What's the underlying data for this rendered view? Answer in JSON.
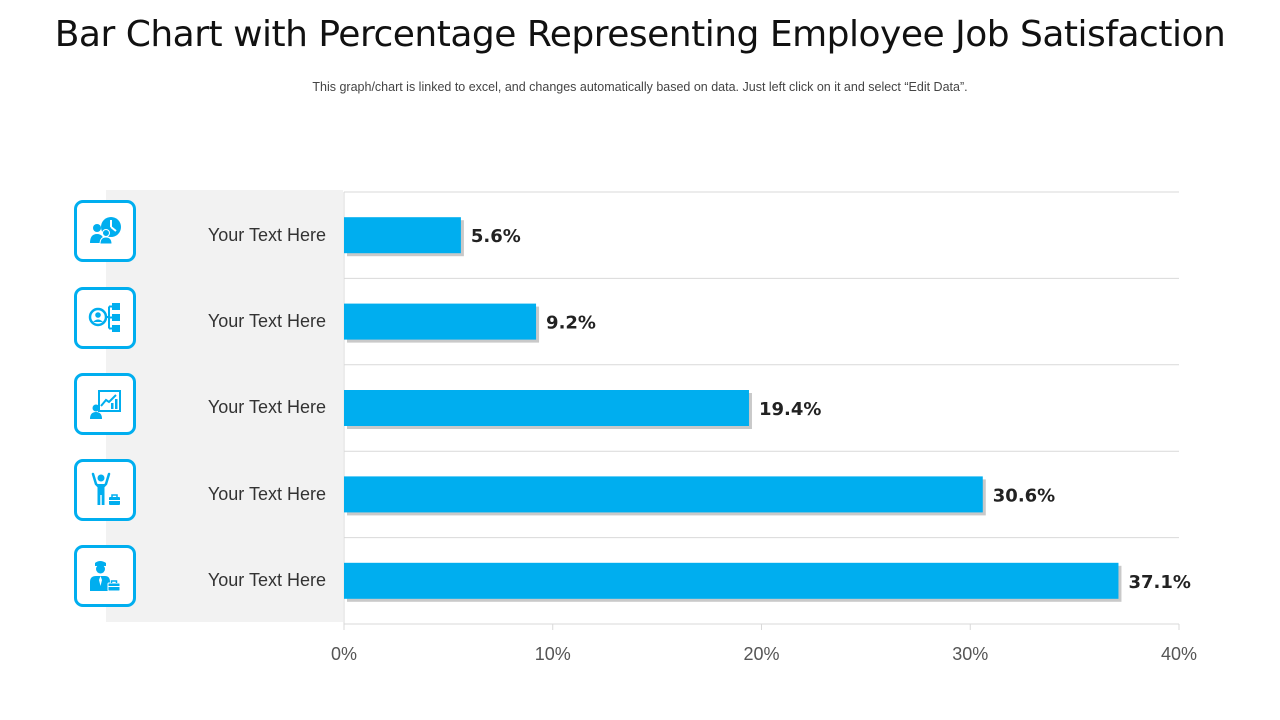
{
  "header": {
    "title": "Bar Chart with Percentage Representing Employee Job Satisfaction",
    "subtitle": "This graph/chart is linked to excel,  and changes automatically based on data. Just left click on it and select “Edit Data”."
  },
  "colors": {
    "bar": "#00aeef",
    "bar_shadow": "#c9c9c9",
    "grid": "#d9d9d9",
    "panel": "#f2f2f2",
    "icon_border": "#00aeef"
  },
  "icons": [
    "team-meeting-icon",
    "org-structure-icon",
    "growth-presentation-icon",
    "celebrating-employee-icon",
    "businessman-briefcase-icon"
  ],
  "chart_data": {
    "type": "bar",
    "orientation": "horizontal",
    "categories": [
      "Your Text Here",
      "Your Text Here",
      "Your Text Here",
      "Your Text Here",
      "Your Text Here"
    ],
    "series": [
      {
        "values": [
          5.6,
          9.2,
          19.4,
          30.6,
          37.1
        ]
      }
    ],
    "data_labels": [
      "5.6%",
      "9.2%",
      "19.4%",
      "30.6%",
      "37.1%"
    ],
    "xlim": [
      0,
      40
    ],
    "xticks": [
      0,
      10,
      20,
      30,
      40
    ],
    "xtick_labels": [
      "0%",
      "10%",
      "20%",
      "30%",
      "40%"
    ],
    "grid": true,
    "legend": "none"
  }
}
